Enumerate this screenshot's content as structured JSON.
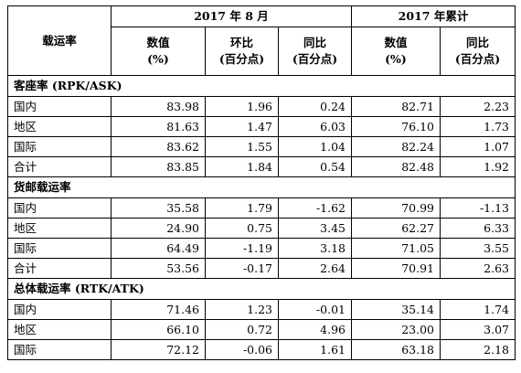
{
  "header": {
    "row_label": "载运率",
    "month_group": "2017 年 8 月",
    "ytd_group": "2017 年累计",
    "columns": {
      "value_line1": "数值",
      "value_line2": "(%)",
      "mom_line1": "环比",
      "mom_line2": "(百分点)",
      "yoy_line1": "同比",
      "yoy_line2": "(百分点)"
    }
  },
  "sections": [
    {
      "title": "客座率 (RPK/ASK)",
      "rows": [
        {
          "label": "国内",
          "month_value": "83.98",
          "mom": "1.96",
          "yoy": "0.24",
          "ytd_value": "82.71",
          "ytd_yoy": "2.23"
        },
        {
          "label": "地区",
          "month_value": "81.63",
          "mom": "1.47",
          "yoy": "6.03",
          "ytd_value": "76.10",
          "ytd_yoy": "1.73"
        },
        {
          "label": "国际",
          "month_value": "83.62",
          "mom": "1.55",
          "yoy": "1.04",
          "ytd_value": "82.24",
          "ytd_yoy": "1.07"
        },
        {
          "label": "合计",
          "month_value": "83.85",
          "mom": "1.84",
          "yoy": "0.54",
          "ytd_value": "82.48",
          "ytd_yoy": "1.92"
        }
      ]
    },
    {
      "title": "货邮载运率",
      "rows": [
        {
          "label": "国内",
          "month_value": "35.58",
          "mom": "1.79",
          "yoy": "-1.62",
          "ytd_value": "70.99",
          "ytd_yoy": "-1.13"
        },
        {
          "label": "地区",
          "month_value": "24.90",
          "mom": "0.75",
          "yoy": "3.45",
          "ytd_value": "62.27",
          "ytd_yoy": "6.33"
        },
        {
          "label": "国际",
          "month_value": "64.49",
          "mom": "-1.19",
          "yoy": "3.18",
          "ytd_value": "71.05",
          "ytd_yoy": "3.55"
        },
        {
          "label": "合计",
          "month_value": "53.56",
          "mom": "-0.17",
          "yoy": "2.64",
          "ytd_value": "70.91",
          "ytd_yoy": "2.63"
        }
      ]
    },
    {
      "title": "总体载运率 (RTK/ATK)",
      "rows": [
        {
          "label": "国内",
          "month_value": "71.46",
          "mom": "1.23",
          "yoy": "-0.01",
          "ytd_value": "35.14",
          "ytd_yoy": "1.74"
        },
        {
          "label": "地区",
          "month_value": "66.10",
          "mom": "0.72",
          "yoy": "4.96",
          "ytd_value": "23.00",
          "ytd_yoy": "3.07"
        },
        {
          "label": "国际",
          "month_value": "72.12",
          "mom": "-0.06",
          "yoy": "1.61",
          "ytd_value": "63.18",
          "ytd_yoy": "2.18"
        }
      ]
    }
  ]
}
